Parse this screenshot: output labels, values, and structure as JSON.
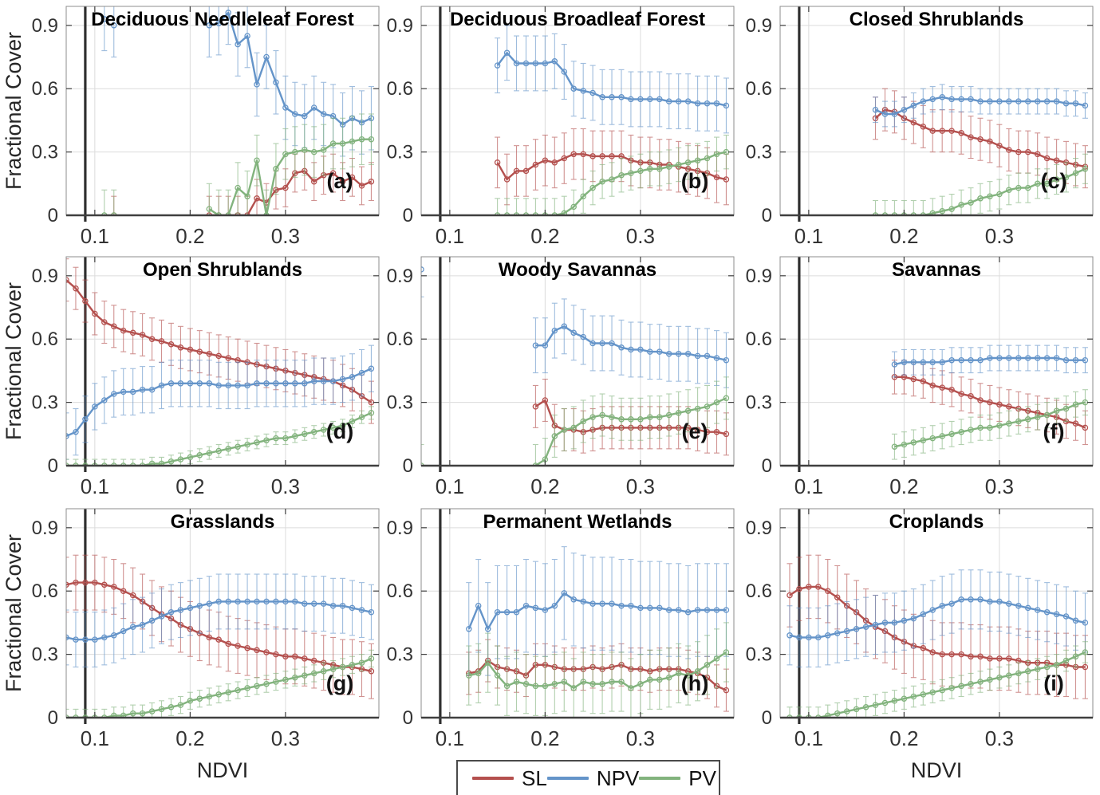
{
  "page": {
    "y_axis_label": "Fractional Cover",
    "x_axis_label": "NDVI"
  },
  "colors": {
    "sl": "#b4504e",
    "npv": "#6494c9",
    "pv": "#82b37d",
    "vline": "#2f2f2f",
    "grid": "#dcdcdc",
    "spine": "#8c8c8c",
    "axis": "#3f3f3f",
    "tick_label": "#333333"
  },
  "legend": {
    "items": [
      {
        "label": "SL",
        "key": "sl"
      },
      {
        "label": "NPV",
        "key": "npv"
      },
      {
        "label": "PV",
        "key": "pv"
      }
    ]
  },
  "axes": {
    "xlim": [
      0.07,
      0.398
    ],
    "ylim": [
      0,
      0.99
    ],
    "xticks": [
      0.1,
      0.2,
      0.3
    ],
    "yticks": [
      0,
      0.3,
      0.6,
      0.9
    ],
    "xtick_labels": [
      "0.1",
      "0.2",
      "0.3"
    ],
    "ytick_labels": [
      "0",
      "0.3",
      "0.6",
      "0.9"
    ],
    "vline_x": 0.09,
    "grid": true
  },
  "chart_data": [
    {
      "type": "line",
      "title": "Deciduous Needleleaf Forest",
      "tag": "(a)",
      "xlabel": "NDVI",
      "ylabel": "Fractional Cover",
      "series": [
        {
          "name": "SL",
          "key": "sl",
          "err": 0.09,
          "x0": 0.22,
          "dx": 0.01,
          "values": [
            0.0,
            0.0,
            0.0,
            0.0,
            0.0,
            0.08,
            0.06,
            0.12,
            0.13,
            0.2,
            0.21,
            0.16,
            0.19,
            0.2,
            0.16,
            0.18,
            0.14,
            0.16
          ],
          "lone": [
            [
              0.12,
              0.0
            ]
          ]
        },
        {
          "name": "NPV",
          "key": "npv",
          "err": 0.15,
          "x0": 0.22,
          "dx": 0.01,
          "values": [
            0.9,
            0.91,
            0.96,
            0.81,
            0.85,
            0.62,
            0.75,
            0.63,
            0.51,
            0.48,
            0.47,
            0.51,
            0.48,
            0.47,
            0.43,
            0.46,
            0.44,
            0.46
          ],
          "lone": [
            [
              0.11,
              0.93
            ],
            [
              0.12,
              0.9
            ]
          ]
        },
        {
          "name": "PV",
          "key": "pv",
          "err": 0.12,
          "x0": 0.22,
          "dx": 0.01,
          "values": [
            0.03,
            0.0,
            0.0,
            0.13,
            0.09,
            0.26,
            0.0,
            0.22,
            0.29,
            0.3,
            0.31,
            0.3,
            0.31,
            0.34,
            0.34,
            0.35,
            0.36,
            0.36
          ],
          "lone": [
            [
              0.11,
              0.0
            ],
            [
              0.12,
              0.0
            ]
          ]
        }
      ]
    },
    {
      "type": "line",
      "title": "Deciduous Broadleaf Forest",
      "tag": "(b)",
      "series": [
        {
          "name": "SL",
          "key": "sl",
          "err": 0.12,
          "x0": 0.15,
          "dx": 0.01,
          "values": [
            0.25,
            0.17,
            0.21,
            0.21,
            0.24,
            0.26,
            0.25,
            0.27,
            0.29,
            0.29,
            0.28,
            0.28,
            0.28,
            0.28,
            0.26,
            0.25,
            0.25,
            0.24,
            0.24,
            0.23,
            0.22,
            0.21,
            0.2,
            0.18,
            0.17
          ]
        },
        {
          "name": "NPV",
          "key": "npv",
          "err": 0.13,
          "x0": 0.15,
          "dx": 0.01,
          "values": [
            0.71,
            0.77,
            0.72,
            0.72,
            0.72,
            0.72,
            0.73,
            0.68,
            0.6,
            0.59,
            0.58,
            0.56,
            0.56,
            0.56,
            0.55,
            0.55,
            0.55,
            0.55,
            0.54,
            0.54,
            0.54,
            0.53,
            0.53,
            0.53,
            0.52
          ]
        },
        {
          "name": "PV",
          "key": "pv",
          "err": 0.08,
          "x0": 0.15,
          "dx": 0.01,
          "values": [
            0.0,
            0.0,
            0.0,
            0.0,
            0.0,
            0.0,
            0.0,
            0.01,
            0.04,
            0.09,
            0.13,
            0.16,
            0.17,
            0.19,
            0.2,
            0.21,
            0.22,
            0.22,
            0.23,
            0.24,
            0.25,
            0.26,
            0.27,
            0.29,
            0.3
          ]
        }
      ]
    },
    {
      "type": "line",
      "title": "Closed Shrublands",
      "tag": "(c)",
      "series": [
        {
          "name": "SL",
          "key": "sl",
          "err": 0.1,
          "x0": 0.17,
          "dx": 0.01,
          "values": [
            0.46,
            0.5,
            0.49,
            0.46,
            0.44,
            0.42,
            0.4,
            0.4,
            0.4,
            0.39,
            0.37,
            0.36,
            0.35,
            0.33,
            0.31,
            0.3,
            0.3,
            0.29,
            0.27,
            0.26,
            0.25,
            0.24,
            0.23
          ]
        },
        {
          "name": "NPV",
          "key": "npv",
          "err": 0.06,
          "x0": 0.17,
          "dx": 0.01,
          "values": [
            0.5,
            0.48,
            0.48,
            0.5,
            0.52,
            0.54,
            0.55,
            0.56,
            0.55,
            0.55,
            0.55,
            0.54,
            0.54,
            0.54,
            0.54,
            0.54,
            0.54,
            0.54,
            0.54,
            0.54,
            0.53,
            0.53,
            0.52
          ]
        },
        {
          "name": "PV",
          "key": "pv",
          "err": 0.07,
          "x0": 0.17,
          "dx": 0.01,
          "values": [
            0.0,
            0.0,
            0.0,
            0.0,
            0.0,
            0.0,
            0.01,
            0.02,
            0.03,
            0.05,
            0.06,
            0.08,
            0.09,
            0.1,
            0.12,
            0.13,
            0.13,
            0.15,
            0.15,
            0.17,
            0.18,
            0.2,
            0.22
          ]
        }
      ]
    },
    {
      "type": "line",
      "title": "Open Shrublands",
      "tag": "(d)",
      "series": [
        {
          "name": "SL",
          "key": "sl",
          "err": 0.1,
          "x0": 0.07,
          "dx": 0.01,
          "values": [
            0.88,
            0.84,
            0.78,
            0.72,
            0.68,
            0.66,
            0.64,
            0.63,
            0.62,
            0.6,
            0.59,
            0.575,
            0.56,
            0.55,
            0.54,
            0.53,
            0.52,
            0.51,
            0.5,
            0.49,
            0.48,
            0.47,
            0.46,
            0.45,
            0.44,
            0.43,
            0.42,
            0.41,
            0.4,
            0.38,
            0.36,
            0.33,
            0.3
          ]
        },
        {
          "name": "NPV",
          "key": "npv",
          "err": 0.11,
          "x0": 0.07,
          "dx": 0.01,
          "values": [
            0.14,
            0.16,
            0.22,
            0.28,
            0.31,
            0.34,
            0.35,
            0.35,
            0.36,
            0.36,
            0.38,
            0.39,
            0.39,
            0.39,
            0.39,
            0.39,
            0.38,
            0.38,
            0.38,
            0.38,
            0.39,
            0.39,
            0.39,
            0.39,
            0.39,
            0.39,
            0.4,
            0.4,
            0.4,
            0.41,
            0.42,
            0.44,
            0.46
          ]
        },
        {
          "name": "PV",
          "key": "pv",
          "err": 0.03,
          "x0": 0.07,
          "dx": 0.01,
          "values": [
            0.0,
            0.0,
            0.0,
            0.0,
            0.0,
            0.0,
            0.0,
            0.0,
            0.0,
            0.01,
            0.01,
            0.02,
            0.03,
            0.04,
            0.05,
            0.06,
            0.07,
            0.08,
            0.09,
            0.1,
            0.11,
            0.12,
            0.13,
            0.13,
            0.14,
            0.15,
            0.16,
            0.17,
            0.18,
            0.19,
            0.21,
            0.23,
            0.25
          ]
        }
      ]
    },
    {
      "type": "line",
      "title": "Woody Savannas",
      "tag": "(e)",
      "series": [
        {
          "name": "SL",
          "key": "sl",
          "err": 0.1,
          "x0": 0.19,
          "dx": 0.01,
          "values": [
            0.28,
            0.31,
            0.19,
            0.17,
            0.17,
            0.16,
            0.17,
            0.18,
            0.18,
            0.18,
            0.18,
            0.18,
            0.18,
            0.18,
            0.18,
            0.18,
            0.18,
            0.17,
            0.16,
            0.16,
            0.15
          ]
        },
        {
          "name": "NPV",
          "key": "npv",
          "err": 0.13,
          "x0": 0.19,
          "dx": 0.01,
          "values": [
            0.57,
            0.57,
            0.64,
            0.66,
            0.63,
            0.61,
            0.58,
            0.58,
            0.58,
            0.56,
            0.55,
            0.55,
            0.54,
            0.54,
            0.53,
            0.53,
            0.53,
            0.52,
            0.52,
            0.51,
            0.5
          ],
          "lone": [
            [
              0.07,
              0.93
            ]
          ]
        },
        {
          "name": "PV",
          "key": "pv",
          "err": 0.1,
          "x0": 0.19,
          "dx": 0.01,
          "values": [
            0.0,
            0.03,
            0.14,
            0.17,
            0.18,
            0.21,
            0.23,
            0.24,
            0.23,
            0.22,
            0.22,
            0.22,
            0.23,
            0.23,
            0.24,
            0.25,
            0.26,
            0.27,
            0.28,
            0.3,
            0.32
          ],
          "lone": [
            [
              0.07,
              0.0
            ]
          ]
        }
      ]
    },
    {
      "type": "line",
      "title": "Savannas",
      "tag": "(f)",
      "series": [
        {
          "name": "SL",
          "key": "sl",
          "err": 0.08,
          "x0": 0.19,
          "dx": 0.01,
          "values": [
            0.42,
            0.42,
            0.41,
            0.4,
            0.38,
            0.37,
            0.36,
            0.34,
            0.33,
            0.31,
            0.3,
            0.29,
            0.28,
            0.27,
            0.26,
            0.25,
            0.24,
            0.23,
            0.21,
            0.2,
            0.18
          ]
        },
        {
          "name": "NPV",
          "key": "npv",
          "err": 0.06,
          "x0": 0.19,
          "dx": 0.01,
          "values": [
            0.48,
            0.49,
            0.49,
            0.49,
            0.49,
            0.49,
            0.5,
            0.5,
            0.5,
            0.5,
            0.51,
            0.51,
            0.51,
            0.51,
            0.51,
            0.51,
            0.51,
            0.51,
            0.5,
            0.5,
            0.5
          ]
        },
        {
          "name": "PV",
          "key": "pv",
          "err": 0.06,
          "x0": 0.19,
          "dx": 0.01,
          "values": [
            0.09,
            0.1,
            0.11,
            0.12,
            0.13,
            0.14,
            0.15,
            0.16,
            0.17,
            0.18,
            0.18,
            0.19,
            0.2,
            0.21,
            0.22,
            0.23,
            0.24,
            0.26,
            0.27,
            0.29,
            0.3
          ]
        }
      ]
    },
    {
      "type": "line",
      "title": "Grasslands",
      "tag": "(g)",
      "series": [
        {
          "name": "SL",
          "key": "sl",
          "err": 0.13,
          "x0": 0.07,
          "dx": 0.01,
          "values": [
            0.63,
            0.64,
            0.64,
            0.64,
            0.63,
            0.62,
            0.6,
            0.58,
            0.55,
            0.52,
            0.49,
            0.47,
            0.44,
            0.42,
            0.4,
            0.38,
            0.37,
            0.35,
            0.34,
            0.33,
            0.32,
            0.31,
            0.3,
            0.29,
            0.29,
            0.28,
            0.27,
            0.26,
            0.25,
            0.24,
            0.24,
            0.23,
            0.22
          ]
        },
        {
          "name": "NPV",
          "key": "npv",
          "err": 0.13,
          "x0": 0.07,
          "dx": 0.01,
          "values": [
            0.38,
            0.37,
            0.37,
            0.37,
            0.38,
            0.39,
            0.41,
            0.43,
            0.44,
            0.46,
            0.48,
            0.5,
            0.51,
            0.52,
            0.53,
            0.54,
            0.55,
            0.55,
            0.55,
            0.55,
            0.55,
            0.55,
            0.55,
            0.55,
            0.55,
            0.54,
            0.54,
            0.54,
            0.53,
            0.53,
            0.52,
            0.51,
            0.5
          ]
        },
        {
          "name": "PV",
          "key": "pv",
          "err": 0.04,
          "x0": 0.07,
          "dx": 0.01,
          "values": [
            0.0,
            0.0,
            0.0,
            0.0,
            0.0,
            0.01,
            0.01,
            0.02,
            0.02,
            0.03,
            0.04,
            0.05,
            0.06,
            0.08,
            0.09,
            0.1,
            0.11,
            0.12,
            0.13,
            0.14,
            0.15,
            0.16,
            0.17,
            0.18,
            0.19,
            0.2,
            0.21,
            0.22,
            0.23,
            0.24,
            0.25,
            0.26,
            0.28
          ]
        }
      ]
    },
    {
      "type": "line",
      "title": "Permanent Wetlands",
      "tag": "(h)",
      "series": [
        {
          "name": "SL",
          "key": "sl",
          "err": 0.1,
          "x0": 0.12,
          "dx": 0.01,
          "values": [
            0.21,
            0.22,
            0.27,
            0.24,
            0.23,
            0.22,
            0.2,
            0.25,
            0.25,
            0.24,
            0.23,
            0.23,
            0.23,
            0.24,
            0.23,
            0.24,
            0.25,
            0.23,
            0.23,
            0.22,
            0.23,
            0.23,
            0.23,
            0.22,
            0.21,
            0.19,
            0.15,
            0.13
          ]
        },
        {
          "name": "NPV",
          "key": "npv",
          "err": 0.22,
          "x0": 0.12,
          "dx": 0.01,
          "values": [
            0.42,
            0.53,
            0.42,
            0.5,
            0.5,
            0.5,
            0.53,
            0.52,
            0.51,
            0.53,
            0.59,
            0.56,
            0.55,
            0.54,
            0.54,
            0.54,
            0.53,
            0.53,
            0.52,
            0.52,
            0.52,
            0.51,
            0.51,
            0.5,
            0.51,
            0.51,
            0.51,
            0.51
          ]
        },
        {
          "name": "PV",
          "key": "pv",
          "err": 0.14,
          "x0": 0.12,
          "dx": 0.01,
          "values": [
            0.2,
            0.21,
            0.26,
            0.2,
            0.15,
            0.17,
            0.16,
            0.15,
            0.15,
            0.16,
            0.17,
            0.14,
            0.17,
            0.16,
            0.16,
            0.17,
            0.17,
            0.14,
            0.16,
            0.18,
            0.18,
            0.19,
            0.21,
            0.2,
            0.22,
            0.25,
            0.28,
            0.31
          ]
        }
      ]
    },
    {
      "type": "line",
      "title": "Croplands",
      "tag": "(i)",
      "series": [
        {
          "name": "SL",
          "key": "sl",
          "err": 0.15,
          "x0": 0.08,
          "dx": 0.01,
          "values": [
            0.58,
            0.61,
            0.62,
            0.62,
            0.6,
            0.57,
            0.53,
            0.5,
            0.46,
            0.43,
            0.41,
            0.38,
            0.36,
            0.34,
            0.33,
            0.31,
            0.3,
            0.3,
            0.3,
            0.29,
            0.29,
            0.28,
            0.28,
            0.28,
            0.27,
            0.26,
            0.26,
            0.26,
            0.25,
            0.25,
            0.24,
            0.24
          ]
        },
        {
          "name": "NPV",
          "key": "npv",
          "err": 0.14,
          "x0": 0.08,
          "dx": 0.01,
          "values": [
            0.39,
            0.38,
            0.38,
            0.38,
            0.39,
            0.4,
            0.41,
            0.42,
            0.43,
            0.44,
            0.45,
            0.45,
            0.46,
            0.47,
            0.49,
            0.51,
            0.53,
            0.54,
            0.56,
            0.56,
            0.56,
            0.55,
            0.55,
            0.54,
            0.53,
            0.52,
            0.51,
            0.5,
            0.49,
            0.48,
            0.46,
            0.45
          ]
        },
        {
          "name": "PV",
          "key": "pv",
          "err": 0.05,
          "x0": 0.08,
          "dx": 0.01,
          "values": [
            0.0,
            0.0,
            0.0,
            0.0,
            0.01,
            0.02,
            0.03,
            0.04,
            0.05,
            0.06,
            0.07,
            0.08,
            0.09,
            0.1,
            0.11,
            0.12,
            0.13,
            0.14,
            0.15,
            0.16,
            0.17,
            0.18,
            0.19,
            0.2,
            0.21,
            0.22,
            0.23,
            0.24,
            0.25,
            0.27,
            0.29,
            0.31
          ]
        }
      ]
    }
  ]
}
